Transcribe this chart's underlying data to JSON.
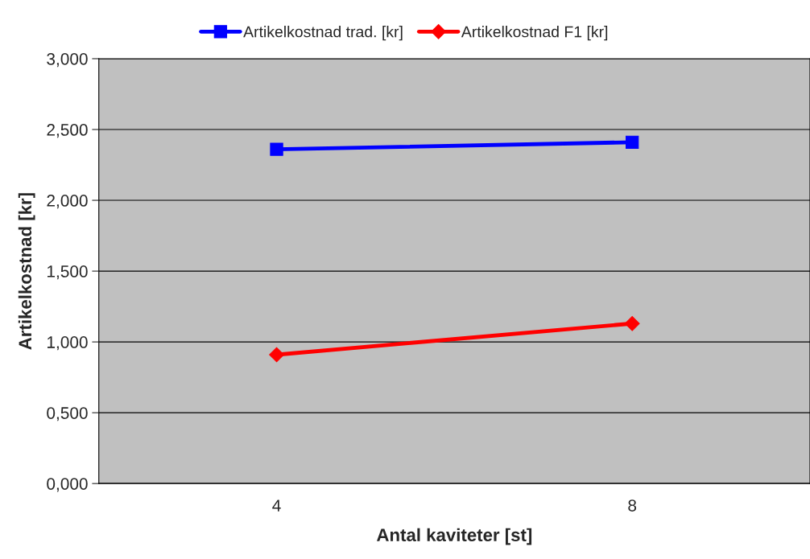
{
  "chart_data": {
    "type": "line",
    "xlabel": "Antal kaviteter [st]",
    "ylabel": "Artikelkostnad [kr]",
    "categories": [
      "4",
      "8"
    ],
    "series": [
      {
        "name": "Artikelkostnad trad. [kr]",
        "color": "#0000ff",
        "marker": "square",
        "values": [
          2.36,
          2.41
        ]
      },
      {
        "name": "Artikelkostnad F1 [kr]",
        "color": "#ff0000",
        "marker": "diamond",
        "values": [
          0.91,
          1.13
        ]
      }
    ],
    "ylim": [
      0,
      3
    ],
    "yticks": [
      {
        "value": 0,
        "label": "0,000"
      },
      {
        "value": 0.5,
        "label": "0,500"
      },
      {
        "value": 1,
        "label": "1,000"
      },
      {
        "value": 1.5,
        "label": "1,500"
      },
      {
        "value": 2,
        "label": "2,000"
      },
      {
        "value": 2.5,
        "label": "2,500"
      },
      {
        "value": 3,
        "label": "3,000"
      }
    ],
    "grid": "y",
    "legend": "top",
    "line_style": "solid"
  }
}
